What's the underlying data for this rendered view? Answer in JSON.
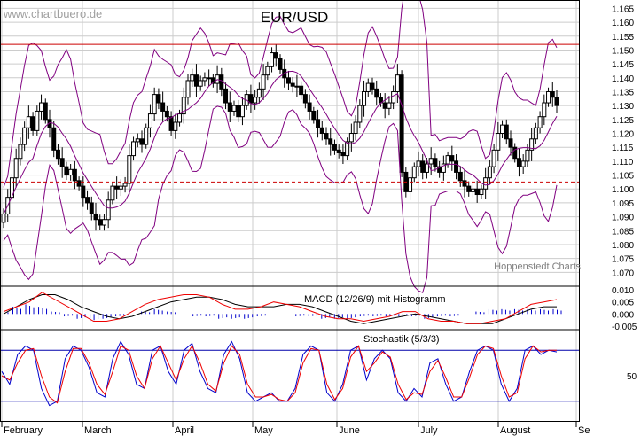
{
  "title": "EUR/USD",
  "watermark": "www.chartbuero.de",
  "source": "Hoppenstedt Charts",
  "macd_label": "MACD (12/26/9) mit Histogramm",
  "stoch_label": "Stochastik (5/3/3)",
  "months": [
    "February",
    "March",
    "April",
    "May",
    "June",
    "July",
    "August",
    "Se"
  ],
  "colors": {
    "price": "#000000",
    "bollinger": "#800080",
    "resistance": "#cc0000",
    "support": "#cc0000",
    "macd": "#000000",
    "signal": "#ee0000",
    "histogram": "#0000cc",
    "stoch_k": "#0000cc",
    "stoch_d": "#ee0000",
    "stoch_levels": "#0000aa",
    "grid": "#cccccc"
  },
  "chart_data": [
    {
      "type": "candlestick",
      "title": "EUR/USD",
      "ylim": [
        1.065,
        1.168
      ],
      "yticks": [
        1.07,
        1.075,
        1.08,
        1.085,
        1.09,
        1.095,
        1.1,
        1.105,
        1.11,
        1.115,
        1.12,
        1.125,
        1.13,
        1.135,
        1.14,
        1.145,
        1.15,
        1.155,
        1.16,
        1.165
      ],
      "ytick_labels": [
        "1.070",
        "1.075",
        "1.080",
        "1.085",
        "1.090",
        "1.095",
        "1.100",
        "1.105",
        "1.110",
        "1.115",
        "1.120",
        "1.125",
        "1.130",
        "1.135",
        "1.140",
        "1.145",
        "1.150",
        "1.155",
        "1.160",
        "1.165"
      ],
      "resistance_line": 1.152,
      "support_line": 1.1025,
      "grid": true,
      "close": [
        1.091,
        1.097,
        1.104,
        1.111,
        1.116,
        1.122,
        1.126,
        1.121,
        1.128,
        1.131,
        1.125,
        1.122,
        1.114,
        1.111,
        1.108,
        1.105,
        1.107,
        1.103,
        1.101,
        1.097,
        1.095,
        1.091,
        1.089,
        1.087,
        1.089,
        1.096,
        1.101,
        1.1,
        1.101,
        1.102,
        1.112,
        1.117,
        1.118,
        1.116,
        1.122,
        1.127,
        1.134,
        1.131,
        1.128,
        1.126,
        1.121,
        1.124,
        1.127,
        1.133,
        1.139,
        1.141,
        1.137,
        1.139,
        1.14,
        1.14,
        1.138,
        1.141,
        1.136,
        1.131,
        1.128,
        1.13,
        1.126,
        1.13,
        1.134,
        1.131,
        1.133,
        1.136,
        1.141,
        1.144,
        1.149,
        1.147,
        1.143,
        1.14,
        1.138,
        1.137,
        1.137,
        1.134,
        1.131,
        1.128,
        1.125,
        1.122,
        1.12,
        1.118,
        1.116,
        1.114,
        1.113,
        1.112,
        1.117,
        1.12,
        1.124,
        1.13,
        1.135,
        1.138,
        1.136,
        1.133,
        1.131,
        1.129,
        1.131,
        1.135,
        1.141,
        1.106,
        1.099,
        1.104,
        1.108,
        1.11,
        1.106,
        1.109,
        1.111,
        1.108,
        1.106,
        1.109,
        1.112,
        1.11,
        1.106,
        1.103,
        1.101,
        1.099,
        1.1,
        1.098,
        1.1,
        1.104,
        1.108,
        1.114,
        1.12,
        1.123,
        1.118,
        1.115,
        1.111,
        1.108,
        1.11,
        1.114,
        1.118,
        1.122,
        1.126,
        1.131,
        1.135,
        1.133,
        1.13
      ],
      "note": "Bollinger bands (upper, middle, lower) drawn around the candles"
    },
    {
      "type": "line",
      "title": "MACD (12/26/9) mit Histogramm",
      "ylim": [
        -0.0065,
        0.0115
      ],
      "yticks": [
        -0.005,
        0.0,
        0.005,
        0.01
      ],
      "ytick_labels": [
        "-0.005",
        "0.000",
        "0.005",
        "0.010"
      ],
      "series": [
        {
          "name": "MACD",
          "values": [
            0.0,
            0.003,
            0.006,
            0.008,
            0.008,
            0.006,
            0.003,
            0.001,
            -0.001,
            -0.002,
            -0.001,
            0.001,
            0.003,
            0.005,
            0.006,
            0.007,
            0.007,
            0.006,
            0.004,
            0.003,
            0.003,
            0.003,
            0.004,
            0.004,
            0.003,
            0.001,
            -0.001,
            -0.003,
            -0.004,
            -0.003,
            -0.002,
            -0.001,
            0.0,
            -0.001,
            -0.002,
            -0.003,
            -0.004,
            -0.004,
            -0.004,
            -0.002,
            0.0,
            0.002,
            0.003,
            0.003
          ]
        },
        {
          "name": "Signal",
          "values": [
            0.001,
            0.003,
            0.005,
            0.009,
            0.006,
            0.003,
            0.0,
            -0.003,
            -0.003,
            -0.002,
            0.001,
            0.004,
            0.006,
            0.007,
            0.008,
            0.008,
            0.007,
            0.004,
            0.002,
            0.002,
            0.003,
            0.005,
            0.004,
            0.003,
            0.001,
            -0.001,
            -0.002,
            -0.002,
            -0.003,
            -0.002,
            -0.001,
            0.001,
            0.001,
            -0.002,
            -0.003,
            -0.003,
            -0.004,
            -0.004,
            -0.003,
            -0.002,
            0.001,
            0.004,
            0.005,
            0.006
          ]
        },
        {
          "name": "Histogramm",
          "values": [
            0.001,
            0.003,
            0.004,
            0.003,
            0.001,
            -0.001,
            -0.002,
            -0.003,
            -0.002,
            -0.001,
            0.0,
            0.001,
            0.002,
            0.001,
            0.0,
            -0.001,
            -0.001,
            -0.002,
            -0.002,
            -0.002,
            -0.001,
            0.0,
            0.0,
            -0.001,
            -0.001,
            -0.002,
            -0.002,
            -0.002,
            -0.001,
            -0.001,
            -0.001,
            -0.001,
            -0.001,
            -0.002,
            -0.001,
            -0.001,
            0.0,
            0.001,
            0.002,
            0.002,
            0.002,
            0.002,
            0.002,
            0.002
          ]
        }
      ]
    },
    {
      "type": "line",
      "title": "Stochastik (5/3/3)",
      "ylim": [
        0,
        100
      ],
      "yticks": [
        50
      ],
      "ytick_labels": [
        "50"
      ],
      "levels": [
        20,
        80
      ],
      "series": [
        {
          "name": "%K",
          "values": [
            55,
            40,
            75,
            85,
            80,
            35,
            15,
            20,
            70,
            85,
            80,
            60,
            30,
            25,
            70,
            90,
            75,
            40,
            35,
            80,
            85,
            55,
            40,
            80,
            88,
            55,
            35,
            30,
            75,
            90,
            70,
            30,
            20,
            25,
            30,
            20,
            20,
            35,
            75,
            85,
            80,
            30,
            20,
            40,
            80,
            85,
            45,
            70,
            80,
            70,
            30,
            20,
            35,
            25,
            65,
            70,
            40,
            20,
            25,
            55,
            80,
            85,
            80,
            40,
            20,
            35,
            80,
            85,
            75,
            80,
            78
          ]
        },
        {
          "name": "%D",
          "values": [
            50,
            45,
            65,
            80,
            82,
            50,
            25,
            18,
            55,
            82,
            82,
            65,
            40,
            28,
            55,
            85,
            80,
            50,
            35,
            70,
            85,
            65,
            45,
            70,
            85,
            65,
            40,
            32,
            65,
            85,
            75,
            40,
            25,
            25,
            28,
            22,
            20,
            30,
            65,
            82,
            80,
            40,
            22,
            35,
            72,
            85,
            55,
            65,
            78,
            72,
            40,
            22,
            30,
            28,
            55,
            68,
            48,
            25,
            25,
            48,
            75,
            85,
            82,
            50,
            25,
            30,
            70,
            85,
            78,
            80,
            80
          ]
        }
      ]
    }
  ]
}
